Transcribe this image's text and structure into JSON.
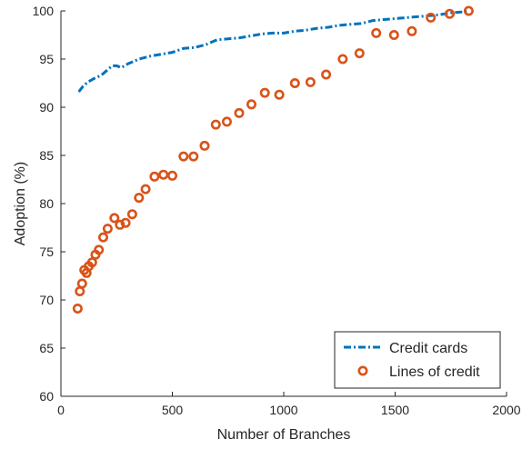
{
  "chart_data": {
    "type": "line",
    "title": "",
    "xlabel": "Number of Branches",
    "ylabel": "Adoption (%)",
    "xlim": [
      0,
      2000
    ],
    "ylim": [
      60,
      100
    ],
    "xticks": [
      0,
      500,
      1000,
      1500,
      2000
    ],
    "yticks": [
      60,
      65,
      70,
      75,
      80,
      85,
      90,
      95,
      100
    ],
    "grid": false,
    "legend_position": "bottom-right",
    "series": [
      {
        "name": "Credit cards",
        "style": "dash-dot line",
        "color": "#0072BD",
        "x": [
          80,
          100,
          120,
          150,
          180,
          200,
          230,
          250,
          270,
          300,
          350,
          400,
          450,
          500,
          550,
          600,
          650,
          700,
          750,
          800,
          850,
          900,
          950,
          1000,
          1050,
          1100,
          1150,
          1200,
          1250,
          1300,
          1350,
          1400,
          1450,
          1500,
          1550,
          1600,
          1650,
          1700,
          1750,
          1800,
          1830
        ],
        "values": [
          91.6,
          92.2,
          92.6,
          93.0,
          93.3,
          93.7,
          94.3,
          94.3,
          94.1,
          94.5,
          95.0,
          95.3,
          95.5,
          95.7,
          96.1,
          96.2,
          96.5,
          97.0,
          97.1,
          97.2,
          97.4,
          97.6,
          97.7,
          97.7,
          97.9,
          98.0,
          98.2,
          98.3,
          98.5,
          98.6,
          98.7,
          99.0,
          99.1,
          99.2,
          99.3,
          99.4,
          99.5,
          99.6,
          99.8,
          99.9,
          100.0
        ]
      },
      {
        "name": "Lines of credit",
        "style": "markers",
        "color": "#D95319",
        "x": [
          75,
          85,
          95,
          105,
          115,
          125,
          140,
          155,
          170,
          190,
          210,
          240,
          265,
          290,
          320,
          350,
          380,
          420,
          460,
          500,
          550,
          595,
          645,
          695,
          745,
          800,
          855,
          915,
          980,
          1050,
          1120,
          1190,
          1265,
          1340,
          1415,
          1495,
          1575,
          1660,
          1745,
          1830
        ],
        "values": [
          69.1,
          70.9,
          71.7,
          73.1,
          72.8,
          73.5,
          73.9,
          74.7,
          75.2,
          76.5,
          77.4,
          78.5,
          77.8,
          78.0,
          78.9,
          80.6,
          81.5,
          82.8,
          83.0,
          82.9,
          84.9,
          84.9,
          86.0,
          88.2,
          88.5,
          89.4,
          90.3,
          91.5,
          91.3,
          92.5,
          92.6,
          93.4,
          95.0,
          95.6,
          97.7,
          97.5,
          97.9,
          99.3,
          99.7,
          100.0
        ]
      }
    ]
  }
}
